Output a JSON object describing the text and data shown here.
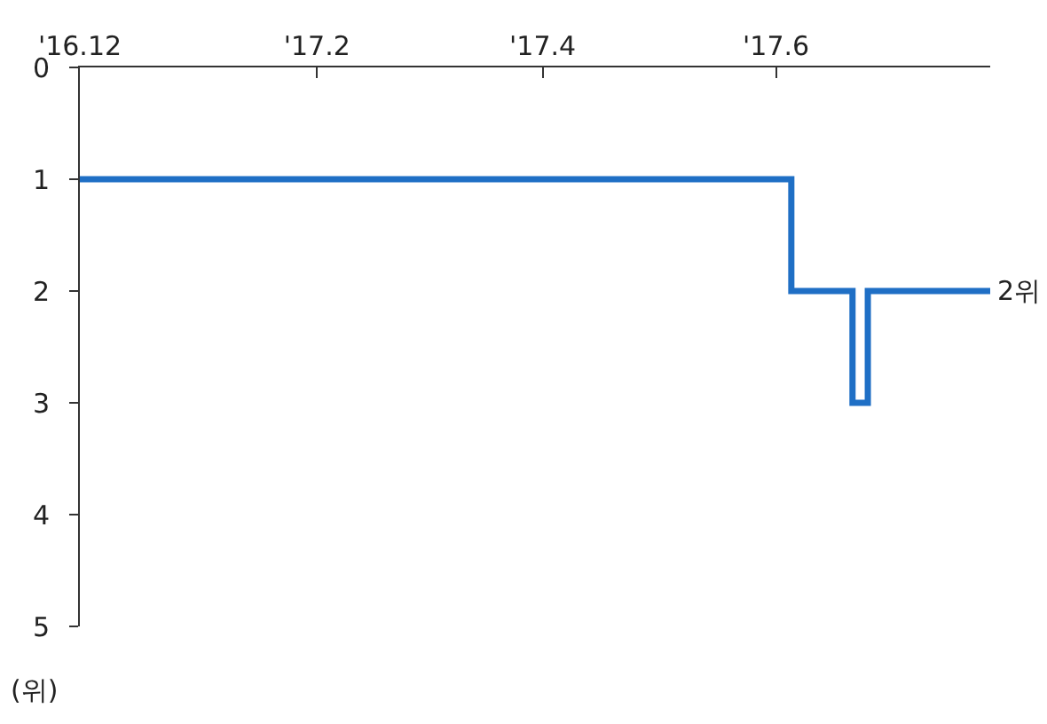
{
  "chart_data": {
    "type": "step",
    "ylabel": "(위)",
    "x": [
      "2016-12-01",
      "2017-06-05",
      "2017-06-21",
      "2017-06-25",
      "2017-07-27"
    ],
    "series": [
      {
        "color": "#1f6fc5",
        "values": [
          1,
          2,
          3,
          2,
          2
        ]
      }
    ],
    "xlim": [
      "2016-12-01",
      "2017-07-27"
    ],
    "xticks": [
      {
        "value": "2016-12-01",
        "label": "'16.12"
      },
      {
        "value": "2017-02-01",
        "label": "'17.2"
      },
      {
        "value": "2017-04-01",
        "label": "'17.4"
      },
      {
        "value": "2017-06-01",
        "label": "'17.6"
      }
    ],
    "ylim": [
      5,
      0
    ],
    "yticks": [
      0,
      1,
      2,
      3,
      4,
      5
    ],
    "annotations": [
      {
        "text": "2위",
        "x": "2017-07-27",
        "y": 2
      }
    ],
    "grid": false,
    "marker": "none",
    "line_style": "solid"
  }
}
